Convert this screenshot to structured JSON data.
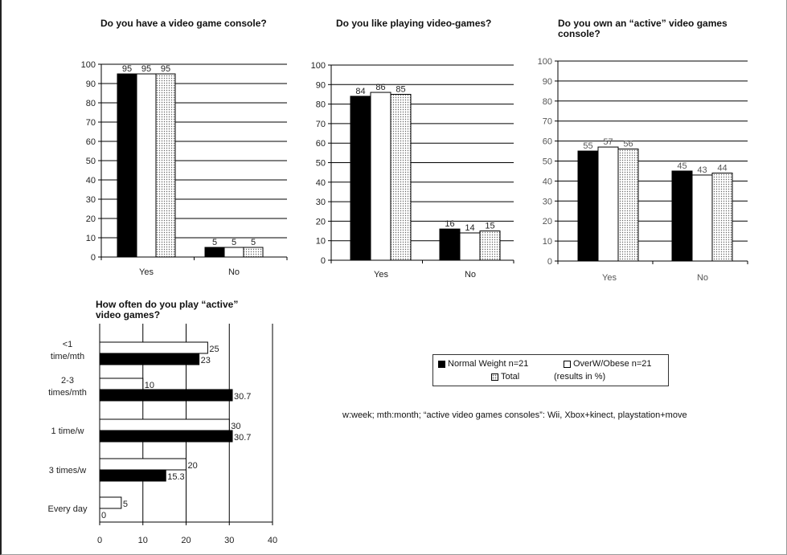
{
  "chart_data": [
    {
      "type": "bar",
      "title": "Do you have a video game console?",
      "categories": [
        "Yes",
        "No"
      ],
      "series": [
        {
          "name": "Normal Weight n=21",
          "values": [
            95,
            5
          ]
        },
        {
          "name": "OverW/Obese n=21",
          "values": [
            95,
            5
          ]
        },
        {
          "name": "Total",
          "values": [
            95,
            5
          ]
        }
      ],
      "ylim": [
        0,
        100
      ],
      "yticks": [
        0,
        10,
        20,
        30,
        40,
        50,
        60,
        70,
        80,
        90,
        100
      ],
      "grid": true
    },
    {
      "type": "bar",
      "title": "Do you like playing video-games?",
      "categories": [
        "Yes",
        "No"
      ],
      "series": [
        {
          "name": "Normal Weight n=21",
          "values": [
            84,
            16
          ]
        },
        {
          "name": "OverW/Obese n=21",
          "values": [
            86,
            14
          ]
        },
        {
          "name": "Total",
          "values": [
            85,
            15
          ]
        }
      ],
      "ylim": [
        0,
        100
      ],
      "yticks": [
        0,
        10,
        20,
        30,
        40,
        50,
        60,
        70,
        80,
        90,
        100
      ],
      "grid": true
    },
    {
      "type": "bar",
      "title_lines": [
        "Do you own an “active” video games",
        "console?"
      ],
      "categories": [
        "Yes",
        "No"
      ],
      "series": [
        {
          "name": "Normal Weight n=21",
          "values": [
            55,
            45
          ]
        },
        {
          "name": "OverW/Obese n=21",
          "values": [
            57,
            43
          ]
        },
        {
          "name": "Total",
          "values": [
            56,
            44
          ]
        }
      ],
      "ylim": [
        0,
        100
      ],
      "yticks": [
        0,
        10,
        20,
        30,
        40,
        50,
        60,
        70,
        80,
        90,
        100
      ],
      "grid": true
    },
    {
      "type": "bar",
      "orientation": "horizontal",
      "title_lines": [
        "How often do you play “active”",
        "video games?"
      ],
      "categories": [
        [
          "<1",
          "time/mth"
        ],
        [
          "2-3",
          "times/mth"
        ],
        [
          "1 time/w"
        ],
        [
          "3 times/w"
        ],
        [
          "Every day"
        ]
      ],
      "series": [
        {
          "name": "OverW/Obese n=21",
          "values": [
            25,
            10,
            30,
            20,
            5
          ]
        },
        {
          "name": "Normal Weight n=21",
          "values": [
            23,
            30.7,
            30.7,
            15.3,
            0
          ]
        }
      ],
      "xlim": [
        0,
        40
      ],
      "xticks": [
        0,
        10,
        20,
        30,
        40
      ],
      "grid": true
    }
  ],
  "legend": {
    "items": [
      {
        "label": "Normal Weight n=21",
        "swatch": "black"
      },
      {
        "label": "OverW/Obese n=21",
        "swatch": "white"
      },
      {
        "label": "Total",
        "swatch": "dotted"
      }
    ],
    "note": "(results in %)"
  },
  "footnote": "w:week; mth:month; “active video  games consoles”: Wii, Xbox+kinect, playstation+move",
  "colors": {
    "normal": "#000000",
    "obese": "#ffffff",
    "total_dots": "#666666",
    "grid": "#000000"
  }
}
